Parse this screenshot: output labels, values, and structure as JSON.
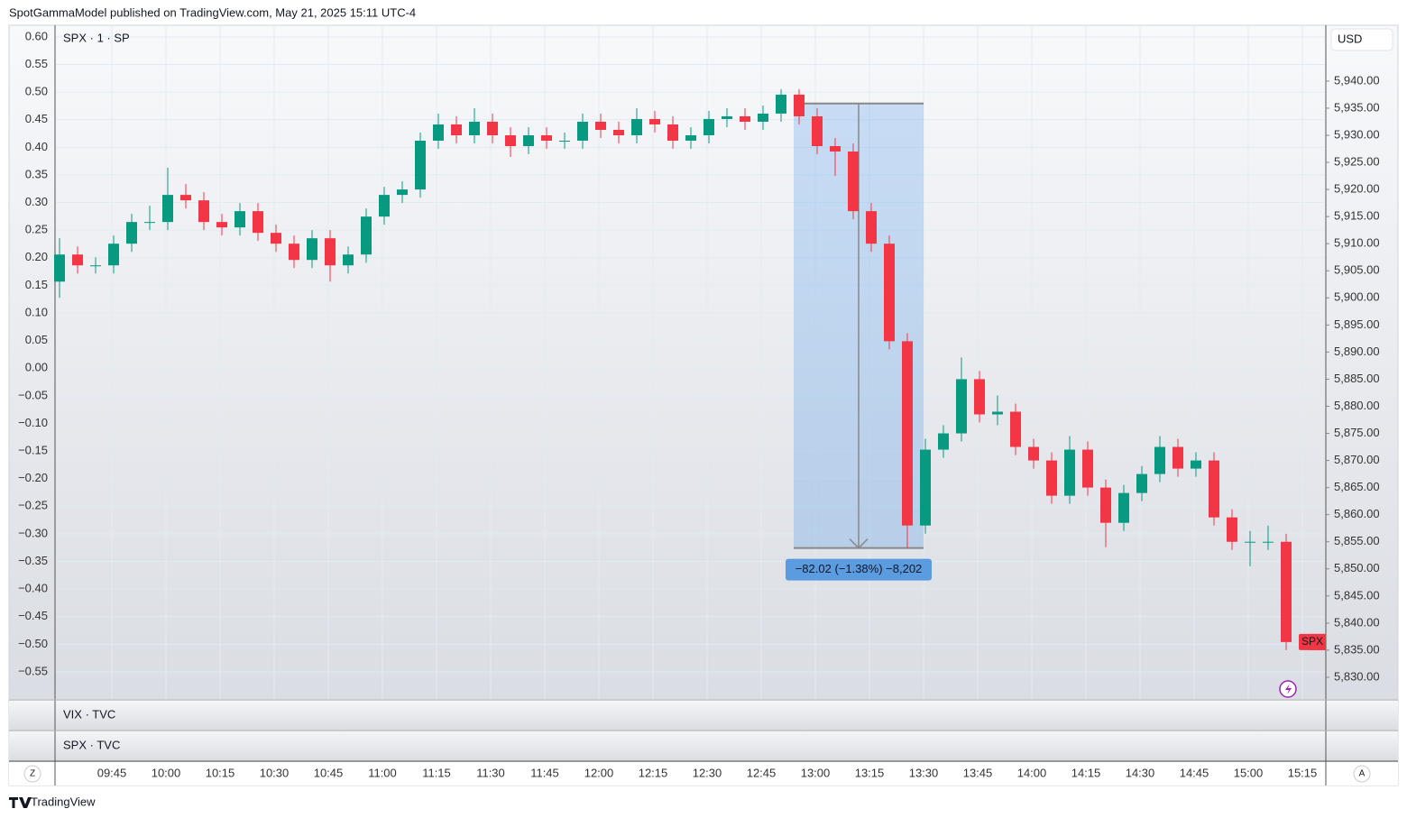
{
  "header": "SpotGammaModel published on TradingView.com, May 21, 2025 15:11 UTC-4",
  "footer": "TradingView",
  "chart_data": {
    "type": "candlestick",
    "title": "SPX · 1 · SP",
    "panes": [
      "VIX · TVC",
      "SPX · TVC"
    ],
    "currency": "USD",
    "last_label": "SPX",
    "buttons": [
      "Z",
      "A"
    ],
    "up_color": "#089981",
    "down_color": "#f23645",
    "grid": true,
    "x": [
      "09:30",
      "09:35",
      "09:40",
      "09:45",
      "09:50",
      "09:55",
      "10:00",
      "10:05",
      "10:10",
      "10:15",
      "10:20",
      "10:25",
      "10:30",
      "10:35",
      "10:40",
      "10:45",
      "10:50",
      "10:55",
      "11:00",
      "11:05",
      "11:10",
      "11:15",
      "11:20",
      "11:25",
      "11:30",
      "11:35",
      "11:40",
      "11:45",
      "11:50",
      "11:55",
      "12:00",
      "12:05",
      "12:10",
      "12:15",
      "12:20",
      "12:25",
      "12:30",
      "12:35",
      "12:40",
      "12:45",
      "12:50",
      "12:55",
      "13:00",
      "13:05",
      "13:10",
      "13:15",
      "13:20",
      "13:25",
      "13:30",
      "13:35",
      "13:40",
      "13:45",
      "13:50",
      "13:55",
      "14:00",
      "14:05",
      "14:10",
      "14:15",
      "14:20",
      "14:25",
      "14:30",
      "14:35",
      "14:40",
      "14:45",
      "14:50",
      "14:55",
      "15:00",
      "15:05",
      "15:10"
    ],
    "open": [
      5903,
      5908,
      5906,
      5906,
      5910,
      5914,
      5914,
      5919,
      5918,
      5914,
      5913,
      5916,
      5912,
      5910,
      5907,
      5911,
      5906,
      5908,
      5915,
      5919,
      5920,
      5929,
      5932,
      5930,
      5932.5,
      5930,
      5928,
      5930,
      5929,
      5929,
      5932.5,
      5931,
      5930,
      5933,
      5932,
      5929,
      5930,
      5933,
      5933.5,
      5932.5,
      5934,
      5937.5,
      5933.5,
      5928,
      5927,
      5916,
      5910,
      5892,
      5858,
      5872,
      5875,
      5885,
      5878.5,
      5879,
      5872.5,
      5870,
      5863.5,
      5872,
      5865,
      5858.5,
      5864,
      5867.5,
      5872.5,
      5868.5,
      5870,
      5859.5,
      5855,
      5855,
      5855
    ],
    "high": [
      5911,
      5909.5,
      5907.5,
      5911.5,
      5915.5,
      5917,
      5924,
      5921,
      5919.5,
      5915.5,
      5917.5,
      5917.5,
      5913.5,
      5911.5,
      5912.5,
      5912.5,
      5909.5,
      5916.5,
      5920.5,
      5921.5,
      5930.5,
      5934,
      5933.5,
      5935,
      5934,
      5931.5,
      5931.5,
      5931.5,
      5930.5,
      5934,
      5934,
      5932.5,
      5935,
      5934.5,
      5933.5,
      5931.5,
      5934.5,
      5935,
      5935,
      5935.5,
      5938.5,
      5938.5,
      5935,
      5929.5,
      5928.5,
      5917.5,
      5911.5,
      5893.5,
      5874,
      5876.5,
      5889,
      5886.5,
      5882,
      5880.5,
      5874,
      5871.5,
      5874.5,
      5873.5,
      5866.5,
      5865.5,
      5869,
      5874.5,
      5874,
      5871.5,
      5871.5,
      5861,
      5857,
      5858,
      5856.5
    ],
    "low": [
      5900,
      5904.5,
      5904.5,
      5904.5,
      5908.5,
      5912.5,
      5912.5,
      5916.5,
      5912.5,
      5911.5,
      5911.5,
      5910.5,
      5908.5,
      5905.5,
      5905.5,
      5903,
      5904.5,
      5906.5,
      5913.5,
      5917.5,
      5918.5,
      5927.5,
      5928.5,
      5928.5,
      5928.5,
      5926,
      5926.5,
      5927.5,
      5927.5,
      5927.5,
      5929.5,
      5928.5,
      5928.5,
      5930.5,
      5927.5,
      5927.5,
      5928.5,
      5931.5,
      5931,
      5931,
      5932.5,
      5932,
      5926.5,
      5922.5,
      5914.5,
      5908.5,
      5890.5,
      5853.85,
      5856.5,
      5870.5,
      5873.5,
      5877,
      5876.5,
      5871,
      5868.5,
      5862,
      5862,
      5863.5,
      5854,
      5857,
      5862.5,
      5866,
      5867,
      5867,
      5858,
      5853.5,
      5850.5,
      5853.5,
      5835
    ],
    "close": [
      5908,
      5906,
      5906,
      5910,
      5914,
      5914,
      5919,
      5918,
      5914,
      5913,
      5916,
      5912,
      5910,
      5907,
      5911,
      5906,
      5908,
      5915,
      5919,
      5920,
      5929,
      5932,
      5930,
      5932.5,
      5930,
      5928,
      5930,
      5929,
      5929,
      5932.5,
      5931,
      5930,
      5933,
      5932,
      5929,
      5930,
      5933,
      5933.5,
      5932.5,
      5934,
      5937.5,
      5933.5,
      5928,
      5927,
      5916,
      5910,
      5892,
      5858,
      5872,
      5875,
      5885,
      5878.5,
      5879,
      5872.5,
      5870,
      5863.5,
      5872,
      5865,
      5858.5,
      5864,
      5867.5,
      5872.5,
      5868.5,
      5870,
      5859.5,
      5855,
      5855,
      5855,
      5836.5
    ],
    "xlim": [
      "09:30",
      "15:21"
    ],
    "xticks": [
      "09:45",
      "10:00",
      "10:15",
      "10:30",
      "10:45",
      "11:00",
      "11:15",
      "11:30",
      "11:45",
      "12:00",
      "12:15",
      "12:30",
      "12:45",
      "13:00",
      "13:15",
      "13:30",
      "13:45",
      "14:00",
      "14:15",
      "14:30",
      "14:45",
      "15:00",
      "15:15"
    ],
    "ylim": [
      5826,
      5950.3
    ],
    "yticks": [
      {
        "value": 5830,
        "label": "5,830.00"
      },
      {
        "value": 5835,
        "label": "5,835.00"
      },
      {
        "value": 5840,
        "label": "5,840.00"
      },
      {
        "value": 5845,
        "label": "5,845.00"
      },
      {
        "value": 5850,
        "label": "5,850.00"
      },
      {
        "value": 5855,
        "label": "5,855.00"
      },
      {
        "value": 5860,
        "label": "5,860.00"
      },
      {
        "value": 5865,
        "label": "5,865.00"
      },
      {
        "value": 5870,
        "label": "5,870.00"
      },
      {
        "value": 5875,
        "label": "5,875.00"
      },
      {
        "value": 5880,
        "label": "5,880.00"
      },
      {
        "value": 5885,
        "label": "5,885.00"
      },
      {
        "value": 5890,
        "label": "5,890.00"
      },
      {
        "value": 5895,
        "label": "5,895.00"
      },
      {
        "value": 5900,
        "label": "5,900.00"
      },
      {
        "value": 5905,
        "label": "5,905.00"
      },
      {
        "value": 5910,
        "label": "5,910.00"
      },
      {
        "value": 5915,
        "label": "5,915.00"
      },
      {
        "value": 5920,
        "label": "5,920.00"
      },
      {
        "value": 5925,
        "label": "5,925.00"
      },
      {
        "value": 5930,
        "label": "5,930.00"
      },
      {
        "value": 5935,
        "label": "5,935.00"
      },
      {
        "value": 5940,
        "label": "5,940.00"
      }
    ],
    "y2lim": [
      -0.599,
      0.621
    ],
    "y2ticks": [
      {
        "value": 0.6,
        "label": "0.60"
      },
      {
        "value": 0.55,
        "label": "0.55"
      },
      {
        "value": 0.5,
        "label": "0.50"
      },
      {
        "value": 0.45,
        "label": "0.45"
      },
      {
        "value": 0.4,
        "label": "0.40"
      },
      {
        "value": 0.35,
        "label": "0.35"
      },
      {
        "value": 0.3,
        "label": "0.30"
      },
      {
        "value": 0.25,
        "label": "0.25"
      },
      {
        "value": 0.2,
        "label": "0.20"
      },
      {
        "value": 0.15,
        "label": "0.15"
      },
      {
        "value": 0.1,
        "label": "0.10"
      },
      {
        "value": 0.05,
        "label": "0.05"
      },
      {
        "value": 0,
        "label": "0.00"
      },
      {
        "value": -0.05,
        "label": "−0.05"
      },
      {
        "value": -0.1,
        "label": "−0.10"
      },
      {
        "value": -0.15,
        "label": "−0.15"
      },
      {
        "value": -0.2,
        "label": "−0.20"
      },
      {
        "value": -0.25,
        "label": "−0.25"
      },
      {
        "value": -0.3,
        "label": "−0.30"
      },
      {
        "value": -0.35,
        "label": "−0.35"
      },
      {
        "value": -0.4,
        "label": "−0.40"
      },
      {
        "value": -0.45,
        "label": "−0.45"
      },
      {
        "value": -0.5,
        "label": "−0.50"
      },
      {
        "value": -0.55,
        "label": "−0.55"
      }
    ],
    "measure": {
      "x": [
        "12:54",
        "13:30"
      ],
      "values": [
        5935.87,
        5853.85
      ],
      "label": "−82.02 (−1.38%) −8,202"
    }
  }
}
